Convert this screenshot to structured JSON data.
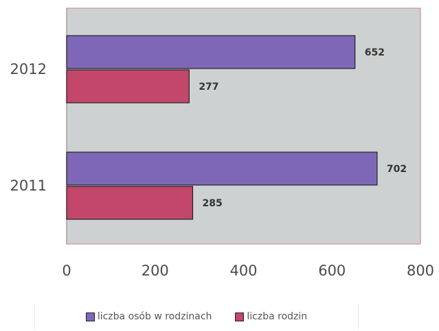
{
  "chart_data": {
    "type": "bar",
    "orientation": "horizontal",
    "categories": [
      "2012",
      "2011"
    ],
    "series": [
      {
        "name": "liczba osób w rodzinach",
        "values": [
          652,
          702
        ],
        "color": "#7f67b8"
      },
      {
        "name": "liczba rodzin",
        "values": [
          277,
          285
        ],
        "color": "#c2476a"
      }
    ],
    "xlim": [
      0,
      800
    ],
    "xticks": [
      "0",
      "200",
      "400",
      "600",
      "800"
    ],
    "grid": false,
    "legend_position": "bottom",
    "plot_background": "#cdd1d1",
    "plot_border": "#d2a2a2"
  }
}
